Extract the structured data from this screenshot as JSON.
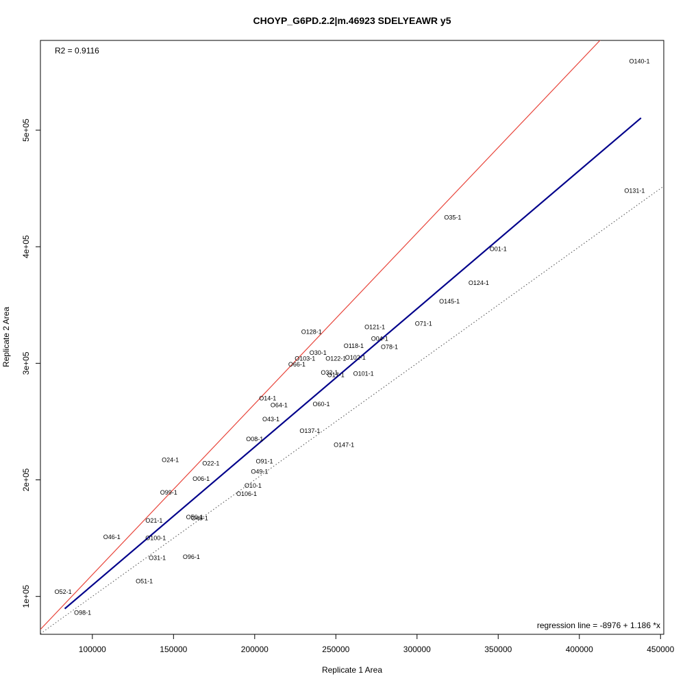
{
  "chart_data": {
    "type": "scatter",
    "title": "CHOYP_G6PD.2.2|m.46923 SDELYEAWR y5",
    "xlabel": "Replicate 1 Area",
    "ylabel": "Replicate 2 Area",
    "xlim": [
      68000,
      452000
    ],
    "ylim": [
      67500,
      577000
    ],
    "x_ticks": [
      100000,
      150000,
      200000,
      250000,
      300000,
      350000,
      400000,
      450000
    ],
    "x_tick_labels": [
      "100000",
      "150000",
      "200000",
      "250000",
      "300000",
      "350000",
      "400000",
      "450000"
    ],
    "y_ticks": [
      100000,
      200000,
      300000,
      400000,
      500000
    ],
    "y_tick_labels": [
      "1e+05",
      "2e+05",
      "3e+05",
      "4e+05",
      "5e+05"
    ],
    "r2_label": "R2 = 0.9116",
    "regression_label": "regression line = -8976 + 1.186 *x",
    "regression": {
      "intercept": -8976,
      "slope": 1.186,
      "x_range": [
        83000,
        438000
      ],
      "color": "#00008b"
    },
    "identity_line": {
      "color": "#4d4d4d"
    },
    "red_line": {
      "color": "#e8443a",
      "slope": 1.466,
      "intercept": -28000
    },
    "points": [
      {
        "label": "O140-1",
        "x": 437000,
        "y": 559000
      },
      {
        "label": "O131-1",
        "x": 434000,
        "y": 448000
      },
      {
        "label": "O35-1",
        "x": 322000,
        "y": 425000
      },
      {
        "label": "O01-1",
        "x": 350000,
        "y": 398000
      },
      {
        "label": "O124-1",
        "x": 338000,
        "y": 369000
      },
      {
        "label": "O145-1",
        "x": 320000,
        "y": 353000
      },
      {
        "label": "O71-1",
        "x": 304000,
        "y": 334000
      },
      {
        "label": "O121-1",
        "x": 274000,
        "y": 331000
      },
      {
        "label": "O128-1",
        "x": 235000,
        "y": 327000
      },
      {
        "label": "O04-1",
        "x": 277000,
        "y": 321000
      },
      {
        "label": "O118-1",
        "x": 261000,
        "y": 315000
      },
      {
        "label": "O78-1",
        "x": 283000,
        "y": 314000
      },
      {
        "label": "O30-1",
        "x": 239000,
        "y": 309000
      },
      {
        "label": "O103-1",
        "x": 231000,
        "y": 304000
      },
      {
        "label": "O122-1",
        "x": 250000,
        "y": 304000
      },
      {
        "label": "O102-1",
        "x": 262000,
        "y": 305000
      },
      {
        "label": "O66-1",
        "x": 226000,
        "y": 299000
      },
      {
        "label": "O32-1",
        "x": 246000,
        "y": 292000
      },
      {
        "label": "O17-1",
        "x": 250000,
        "y": 290000
      },
      {
        "label": "O101-1",
        "x": 267000,
        "y": 291000
      },
      {
        "label": "O14-1",
        "x": 208000,
        "y": 270000
      },
      {
        "label": "O60-1",
        "x": 241000,
        "y": 265000
      },
      {
        "label": "O64-1",
        "x": 215000,
        "y": 264000
      },
      {
        "label": "O43-1",
        "x": 210000,
        "y": 252000
      },
      {
        "label": "O137-1",
        "x": 234000,
        "y": 242000
      },
      {
        "label": "O08-1",
        "x": 200000,
        "y": 235000
      },
      {
        "label": "O147-1",
        "x": 255000,
        "y": 230000
      },
      {
        "label": "O24-1",
        "x": 148000,
        "y": 217000
      },
      {
        "label": "O91-1",
        "x": 206000,
        "y": 216000
      },
      {
        "label": "O22-1",
        "x": 173000,
        "y": 214000
      },
      {
        "label": "O49-1",
        "x": 203000,
        "y": 207000
      },
      {
        "label": "O06-1",
        "x": 167000,
        "y": 201000
      },
      {
        "label": "O10-1",
        "x": 199000,
        "y": 195000
      },
      {
        "label": "O99-1",
        "x": 147000,
        "y": 189000
      },
      {
        "label": "O106-1",
        "x": 195000,
        "y": 188000
      },
      {
        "label": "O56-1",
        "x": 163000,
        "y": 168000
      },
      {
        "label": "O48-1",
        "x": 166000,
        "y": 167000
      },
      {
        "label": "O21-1",
        "x": 138000,
        "y": 165000
      },
      {
        "label": "O46-1",
        "x": 112000,
        "y": 151000
      },
      {
        "label": "O100-1",
        "x": 139000,
        "y": 150000
      },
      {
        "label": "O31-1",
        "x": 140000,
        "y": 133000
      },
      {
        "label": "O96-1",
        "x": 161000,
        "y": 134000
      },
      {
        "label": "O51-1",
        "x": 132000,
        "y": 113000
      },
      {
        "label": "O52-1",
        "x": 82000,
        "y": 104000
      },
      {
        "label": "O98-1",
        "x": 94000,
        "y": 86000
      }
    ]
  }
}
